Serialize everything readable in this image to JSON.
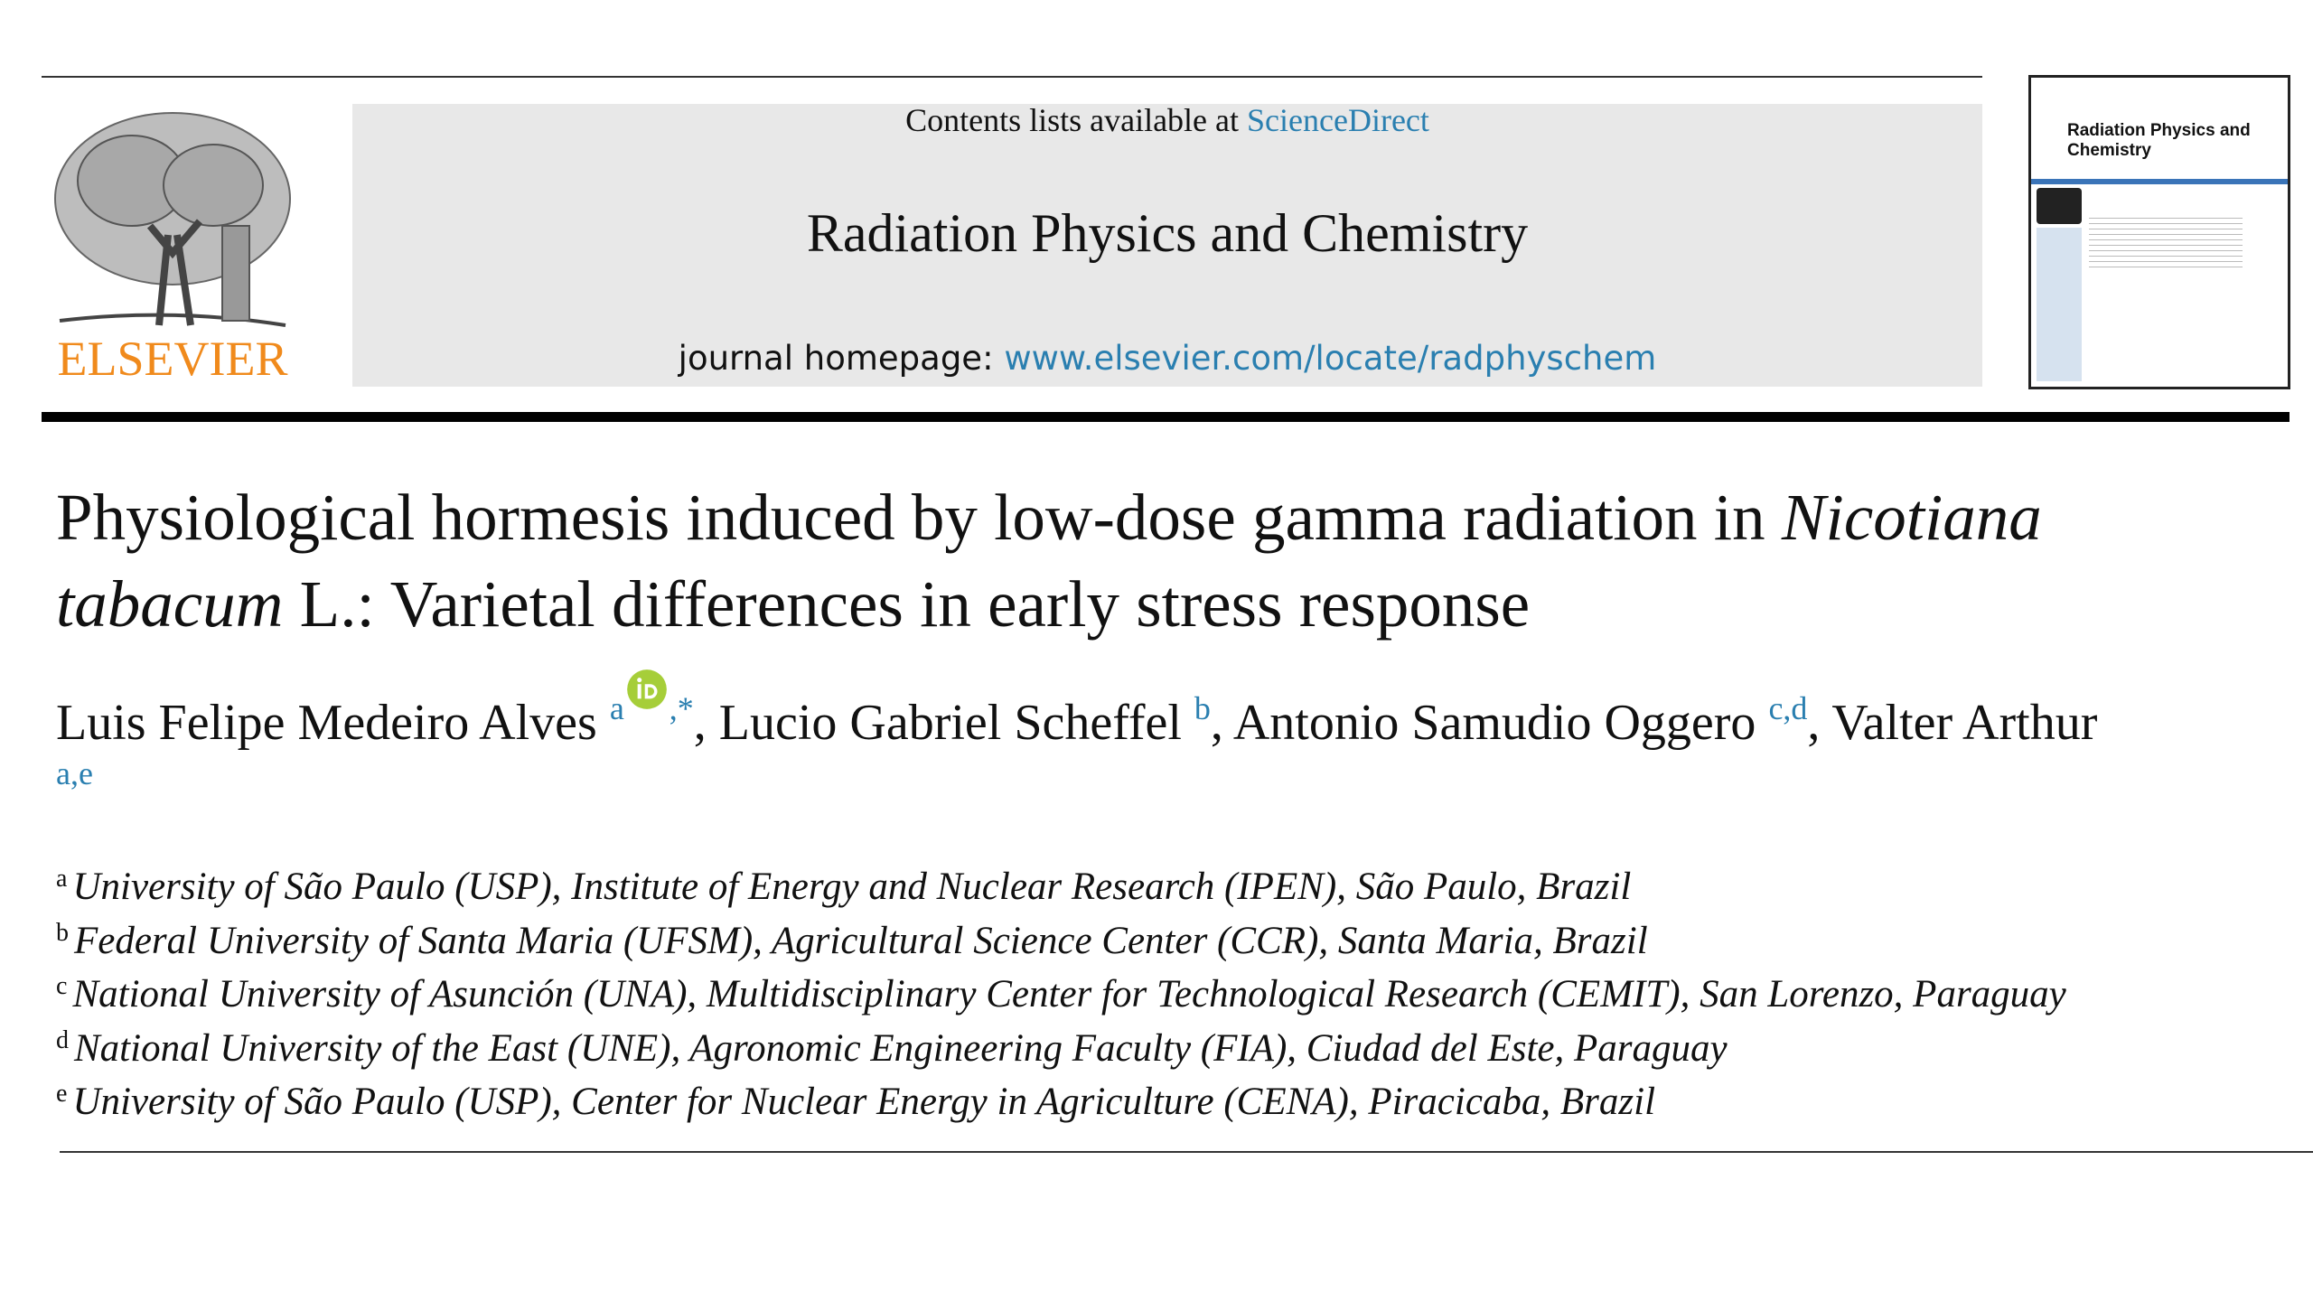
{
  "header": {
    "contents_prefix": "Contents lists available at",
    "contents_link": "ScienceDirect",
    "journal": "Radiation Physics and Chemistry",
    "homepage_prefix": "journal homepage:",
    "homepage_url": "www.elsevier.com/locate/radphyschem",
    "publisher": "ELSEVIER",
    "cover_title": "Radiation Physics and Chemistry"
  },
  "article": {
    "title": [
      {
        "text": "Physiological hormesis induced by low-dose gamma radiation in ",
        "italic": false
      },
      {
        "text": "Nicotiana tabacum",
        "italic": true
      },
      {
        "text": " L.: Varietal differences in early stress response",
        "italic": false
      }
    ],
    "authors": [
      {
        "name": "Luis Felipe Medeiro Alves",
        "affiliations": "a",
        "orcid": true,
        "marker": ",*",
        "separator": ","
      },
      {
        "name": "Lucio Gabriel Scheffel",
        "affiliations": "b",
        "orcid": false,
        "separator": ","
      },
      {
        "name": "Antonio Samudio Oggero",
        "affiliations": "c,d",
        "orcid": false,
        "separator": ","
      },
      {
        "name": "Valter Arthur",
        "affiliations": "a,e",
        "orcid": false
      }
    ],
    "affiliations": [
      {
        "label": "a",
        "text": "University of São Paulo (USP), Institute of Energy and Nuclear Research (IPEN), São Paulo, Brazil"
      },
      {
        "label": "b",
        "text": "Federal University of Santa Maria (UFSM), Agricultural Science Center (CCR), Santa Maria, Brazil"
      },
      {
        "label": "c",
        "text": "National University of Asunción (UNA), Multidisciplinary Center for Technological Research (CEMIT), San Lorenzo, Paraguay"
      },
      {
        "label": "d",
        "text": "National University of the East (UNE), Agronomic Engineering Faculty (FIA), Ciudad del Este, Paraguay"
      },
      {
        "label": "e",
        "text": "University of São Paulo (USP), Center for Nuclear Energy in Agriculture (CENA), Piracicaba, Brazil"
      }
    ]
  }
}
